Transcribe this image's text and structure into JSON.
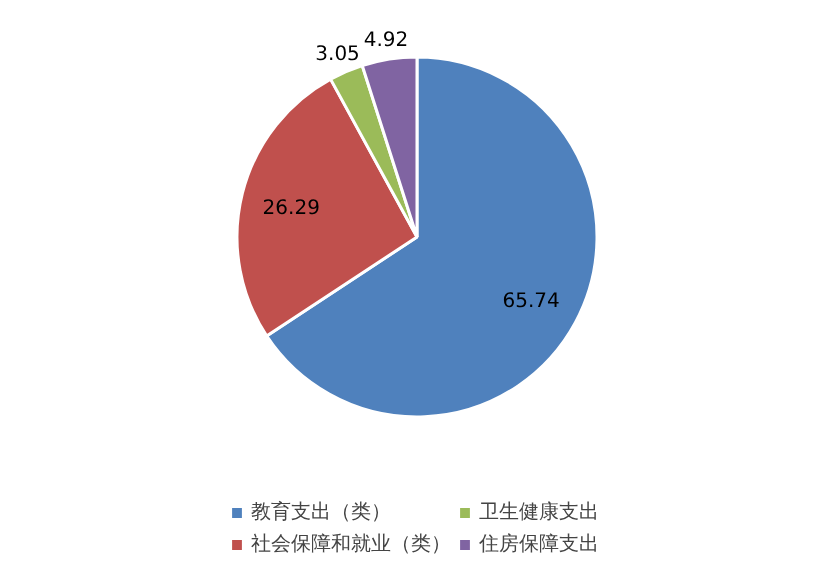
{
  "chart_data": {
    "type": "pie",
    "categories": [
      "教育支出（类）",
      "社会保障和就业（类）",
      "卫生健康支出",
      "住房保障支出"
    ],
    "values": [
      65.74,
      26.29,
      3.05,
      4.92
    ],
    "colors": [
      "#4f81bd",
      "#c0504d",
      "#9bbb59",
      "#8064a2"
    ],
    "data_labels": true,
    "legend": "bottom"
  }
}
